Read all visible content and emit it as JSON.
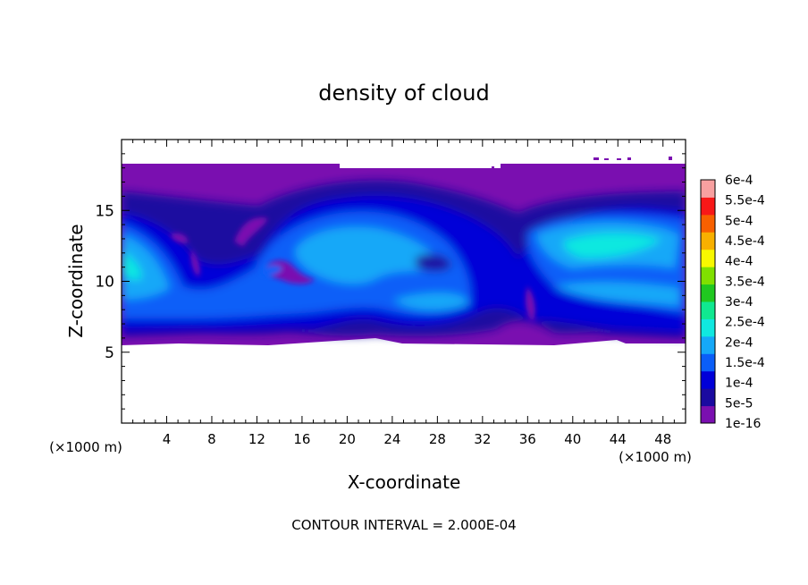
{
  "chart_data": {
    "type": "heatmap",
    "title": "density of cloud",
    "xlabel": "X-coordinate",
    "ylabel": "Z-coordinate",
    "x_unit": "(×1000 m)",
    "y_unit": "(×1000 m)",
    "xlim": [
      0,
      50
    ],
    "ylim": [
      0,
      20
    ],
    "x_ticks": [
      4,
      8,
      12,
      16,
      20,
      24,
      28,
      32,
      36,
      40,
      44,
      48
    ],
    "y_ticks": [
      5,
      10,
      15
    ],
    "footer": "CONTOUR INTERVAL = 2.000E-04",
    "cloud_layer_z": [
      5.5,
      18.2
    ],
    "colorbar": {
      "levels": [
        "1e-16",
        "5e-5",
        "1e-4",
        "1.5e-4",
        "2e-4",
        "2.5e-4",
        "3e-4",
        "3.5e-4",
        "4e-4",
        "4.5e-4",
        "5e-4",
        "5.5e-4",
        "6e-4"
      ],
      "colors": [
        "#7a0fb0",
        "#1a0aa0",
        "#0000d8",
        "#0a5ef8",
        "#15a8f8",
        "#10e8e0",
        "#10e890",
        "#20c820",
        "#80e000",
        "#f8f800",
        "#f8b000",
        "#f86000",
        "#f81818",
        "#f8a0a0"
      ]
    },
    "grid": false,
    "legend": "colorbar-right"
  }
}
